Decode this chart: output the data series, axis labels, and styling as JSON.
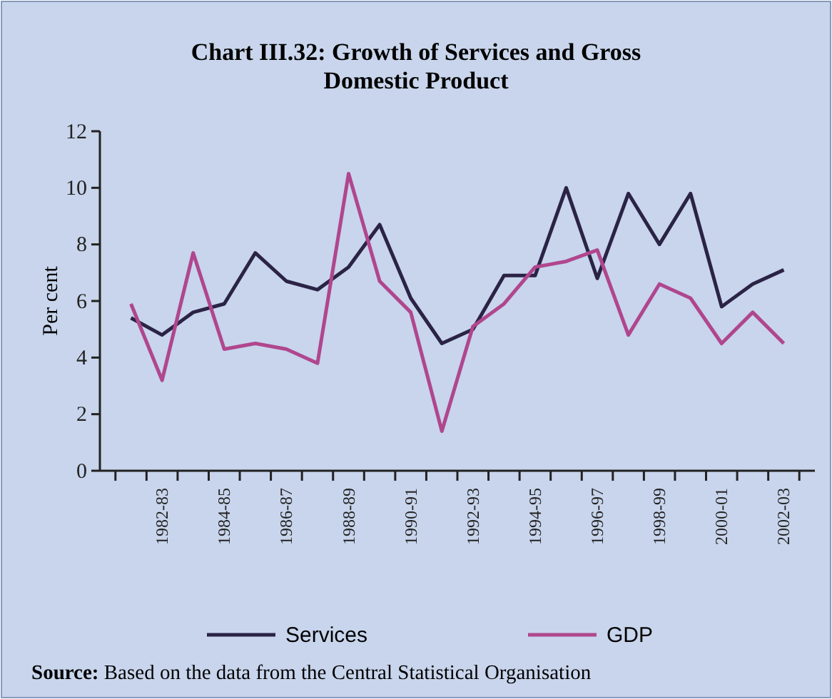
{
  "chart_data": {
    "type": "line",
    "title": "Chart III.32: Growth of Services and Gross Domestic Product",
    "ylabel": "Per cent",
    "categories": [
      null,
      "1982-83",
      null,
      "1984-85",
      null,
      "1986-87",
      null,
      "1988-89",
      null,
      "1990-91",
      null,
      "1992-93",
      null,
      "1994-95",
      null,
      "1996-97",
      null,
      "1998-99",
      null,
      "2000-01",
      null,
      "2002-03"
    ],
    "series": [
      {
        "name": "Services",
        "color": "#2b2346",
        "values": [
          5.4,
          4.8,
          5.6,
          5.9,
          7.7,
          6.7,
          6.4,
          7.2,
          8.7,
          6.1,
          4.5,
          5.0,
          6.9,
          6.9,
          10.0,
          6.8,
          9.8,
          8.0,
          9.8,
          5.8,
          6.6,
          7.1
        ]
      },
      {
        "name": "GDP",
        "color": "#b0468e",
        "values": [
          5.9,
          3.2,
          7.7,
          4.3,
          4.5,
          4.3,
          3.8,
          10.5,
          6.7,
          5.6,
          1.4,
          5.1,
          5.9,
          7.2,
          7.4,
          7.8,
          4.8,
          6.6,
          6.1,
          4.5,
          5.6,
          4.5
        ]
      }
    ],
    "ylim": [
      0,
      12
    ],
    "yticks": [
      0,
      2,
      4,
      6,
      8,
      10,
      12
    ],
    "grid": false,
    "legend": "bottom",
    "marker": "none",
    "line_style": "solid",
    "annotations": [
      "Source: Based on the data from the Central Statistical Organisation"
    ]
  }
}
